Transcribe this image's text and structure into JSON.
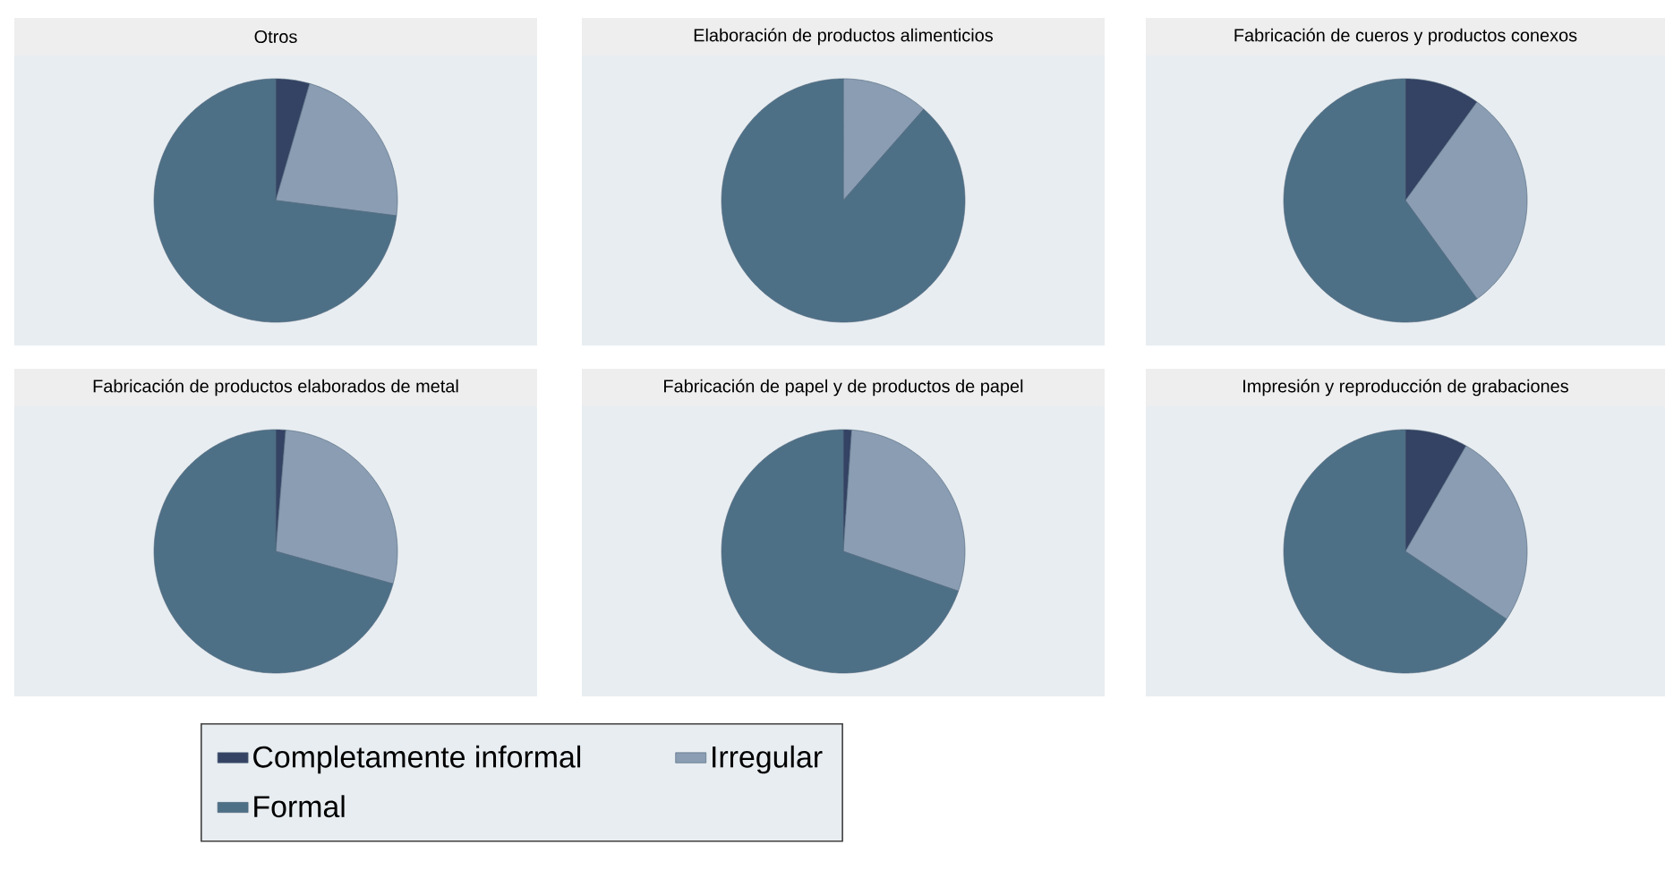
{
  "chart_data": [
    {
      "type": "pie",
      "title": "Otros",
      "categories": [
        "Completamente informal",
        "Irregular",
        "Formal"
      ],
      "values": [
        4.5,
        22.5,
        73.0
      ],
      "colors": [
        "#344263",
        "#8a9db3",
        "#4e7087"
      ],
      "legend": "bottom"
    },
    {
      "type": "pie",
      "title": "Elaboración de productos alimenticios",
      "categories": [
        null,
        null,
        null
      ],
      "values": [
        0,
        11.5,
        88.5
      ],
      "colors": [
        "#344263",
        "#8a9db3",
        "#4e7087"
      ]
    },
    {
      "type": "pie",
      "title": "Fabricación de cueros y productos conexos",
      "categories": [
        null,
        null,
        null
      ],
      "values": [
        10.0,
        30.0,
        60.0
      ],
      "colors": [
        "#344263",
        "#8a9db3",
        "#4e7087"
      ]
    },
    {
      "type": "pie",
      "title": "Fabricación de productos elaborados de metal",
      "categories": [
        null,
        null,
        null
      ],
      "values": [
        1.3,
        28.0,
        70.7
      ],
      "colors": [
        "#344263",
        "#8a9db3",
        "#4e7087"
      ]
    },
    {
      "type": "pie",
      "title": "Fabricación de papel y de productos de papel",
      "categories": [
        null,
        null,
        null
      ],
      "values": [
        1.1,
        29.2,
        69.7
      ],
      "colors": [
        "#344263",
        "#8a9db3",
        "#4e7087"
      ]
    },
    {
      "type": "pie",
      "title": "Impresión y reproducción de grabaciones",
      "categories": [
        null,
        null,
        null
      ],
      "values": [
        8.3,
        26.1,
        65.6
      ],
      "colors": [
        "#344263",
        "#8a9db3",
        "#4e7087"
      ]
    }
  ]
}
